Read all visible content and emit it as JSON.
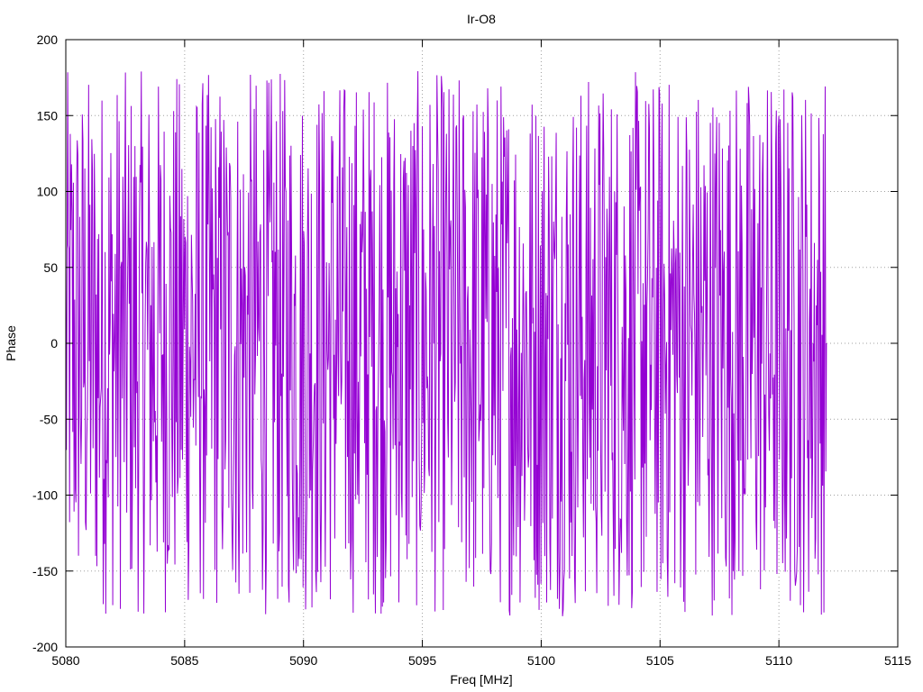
{
  "chart_data": {
    "type": "line",
    "title": "Ir-O8",
    "xlabel": "Freq [MHz]",
    "ylabel": "Phase",
    "xlim": [
      5080,
      5115
    ],
    "ylim": [
      -200,
      200
    ],
    "x_ticks": [
      "5080",
      "5085",
      "5090",
      "5095",
      "5100",
      "5105",
      "5110",
      "5115"
    ],
    "y_ticks": [
      "-200",
      "-150",
      "-100",
      "-50",
      "0",
      "50",
      "100",
      "150"
    ],
    "y_ticks_top": "200",
    "grid": true,
    "legend": "none",
    "series": [
      {
        "color": "#9400d3",
        "x_start": 5080,
        "x_end": 5112,
        "points": 1200,
        "value_range": [
          -180,
          180
        ],
        "envelope": "approximately uniform phase wrapping between -180 and 180, dense noisy oscillation"
      }
    ]
  }
}
